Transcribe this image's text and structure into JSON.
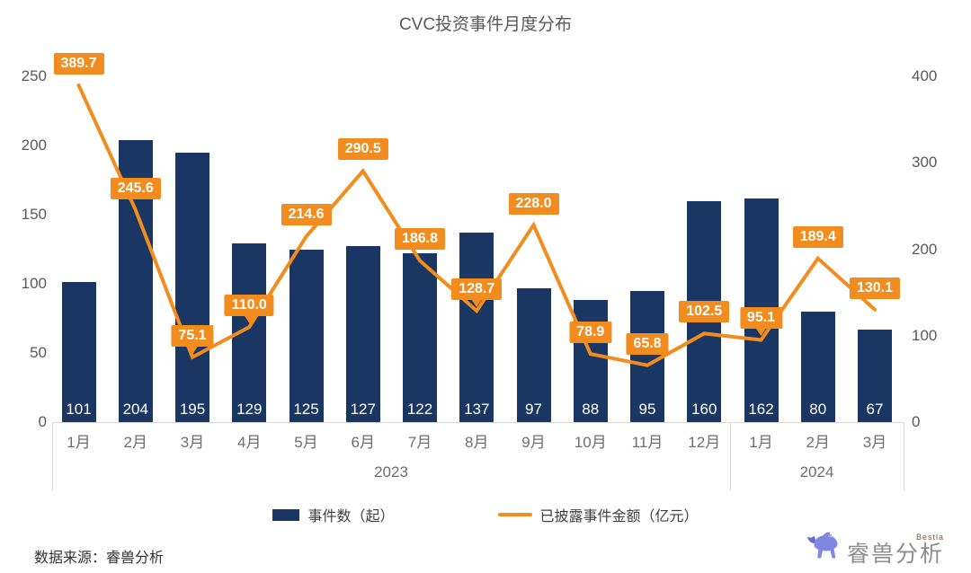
{
  "title": "CVC投资事件月度分布",
  "source_note": "数据来源：睿兽分析",
  "brand": {
    "name": "睿兽分析",
    "subtext": "Bestla"
  },
  "colors": {
    "bar": "#1a3763",
    "line": "#f28c1e",
    "callout_bg": "#f28c1e",
    "callout_text": "#ffffff",
    "bar_label_text": "#ffffff",
    "axis_text": "#595959",
    "category_text": "#6e6e6e",
    "title_text": "#595959",
    "axis_line": "#d9d9d9",
    "legend_text": "#404040",
    "logo_purple": "#8187e0"
  },
  "legend": {
    "position": "bottom",
    "items": [
      "事件数（起）",
      "已披露事件金额（亿元）"
    ]
  },
  "chart_data": {
    "type": "combo",
    "title": "CVC投资事件月度分布",
    "categories": [
      "1月",
      "2月",
      "3月",
      "4月",
      "5月",
      "6月",
      "7月",
      "8月",
      "9月",
      "10月",
      "11月",
      "12月",
      "1月",
      "2月",
      "3月"
    ],
    "year_groups": [
      {
        "label": "2023",
        "count": 12
      },
      {
        "label": "2024",
        "count": 3
      }
    ],
    "series": [
      {
        "name": "事件数（起）",
        "type": "bar",
        "axis": "left",
        "color": "#1a3763",
        "values": [
          101,
          204,
          195,
          129,
          125,
          127,
          122,
          137,
          97,
          88,
          95,
          160,
          162,
          80,
          67
        ]
      },
      {
        "name": "已披露事件金额（亿元）",
        "type": "line",
        "axis": "right",
        "color": "#f28c1e",
        "values": [
          389.7,
          245.6,
          75.1,
          110.0,
          214.6,
          290.5,
          186.8,
          128.7,
          228.0,
          78.9,
          65.8,
          102.5,
          95.1,
          189.4,
          130.1
        ]
      }
    ],
    "axes": {
      "left": {
        "ticks": [
          0,
          50,
          100,
          150,
          200,
          250
        ],
        "max": 250
      },
      "right": {
        "ticks": [
          0,
          100,
          200,
          300,
          400
        ],
        "max": 400
      }
    },
    "grid": false
  }
}
